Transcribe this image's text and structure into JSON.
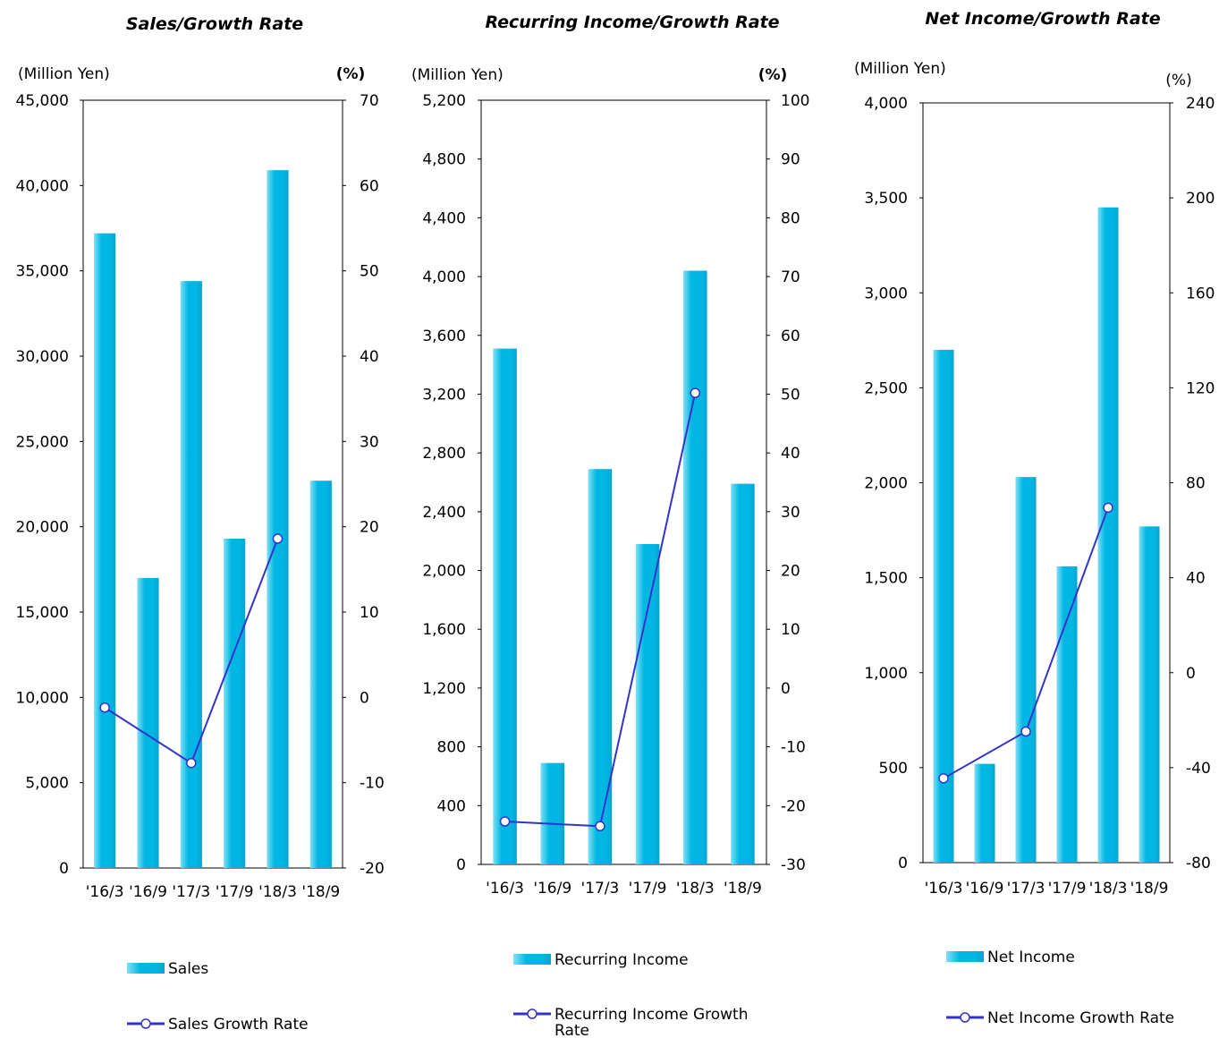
{
  "colors": {
    "bar": "#00b7e3",
    "bar_edge": "#7fe0f5",
    "line": "#3333cc",
    "marker_fill": "#ffffff"
  },
  "chart_data": [
    {
      "type": "bar",
      "title": "Sales/Growth Rate",
      "ylabel": "(Million Yen)",
      "y2label": "(%)",
      "categories": [
        "'16/3",
        "'16/9",
        "'17/3",
        "'17/9",
        "'18/3",
        "'18/9"
      ],
      "ylim": [
        0,
        45000
      ],
      "yticks": [
        "45,000",
        "40,000",
        "35,000",
        "30,000",
        "25,000",
        "20,000",
        "15,000",
        "10,000",
        "5,000",
        "0"
      ],
      "y2lim": [
        -20,
        70
      ],
      "y2ticks": [
        "70",
        "60",
        "50",
        "40",
        "30",
        "20",
        "10",
        "0",
        "-10",
        "-20"
      ],
      "series": [
        {
          "name": "Sales",
          "type": "bar",
          "axis": "left",
          "values": [
            37200,
            17000,
            34400,
            19300,
            40900,
            22700
          ]
        },
        {
          "name": "Sales Growth Rate",
          "type": "line",
          "axis": "right",
          "values": [
            -1.2,
            null,
            -7.7,
            null,
            18.6,
            null
          ]
        }
      ],
      "legend": [
        "Sales",
        "Sales Growth Rate"
      ]
    },
    {
      "type": "bar",
      "title": "Recurring Income/Growth Rate",
      "ylabel": "(Million Yen)",
      "y2label": "(%)",
      "categories": [
        "'16/3",
        "'16/9",
        "'17/3",
        "'17/9",
        "'18/3",
        "'18/9"
      ],
      "ylim": [
        0,
        5200
      ],
      "yticks": [
        "5,200",
        "4,800",
        "4,400",
        "4,000",
        "3,600",
        "3,200",
        "2,800",
        "2,400",
        "2,000",
        "1,600",
        "1,200",
        "800",
        "400",
        "0"
      ],
      "y2lim": [
        -30,
        100
      ],
      "y2ticks": [
        "100",
        "90",
        "80",
        "70",
        "60",
        "50",
        "40",
        "30",
        "20",
        "10",
        "0",
        "-10",
        "-20",
        "-30"
      ],
      "series": [
        {
          "name": "Recurring Income",
          "type": "bar",
          "axis": "left",
          "values": [
            3510,
            690,
            2690,
            2180,
            4040,
            2590
          ]
        },
        {
          "name": "Recurring Income Growth Rate",
          "type": "line",
          "axis": "right",
          "values": [
            -22.7,
            null,
            -23.5,
            null,
            50.2,
            null
          ]
        }
      ],
      "legend": [
        "Recurring Income",
        "Recurring Income Growth Rate"
      ]
    },
    {
      "type": "bar",
      "title": "Net Income/Growth Rate",
      "ylabel": "(Million Yen)",
      "y2label": "(%)",
      "categories": [
        "'16/3",
        "'16/9",
        "'17/3",
        "'17/9",
        "'18/3",
        "'18/9"
      ],
      "ylim": [
        0,
        4000
      ],
      "yticks": [
        "4,000",
        "3,500",
        "3,000",
        "2,500",
        "2,000",
        "1,500",
        "1,000",
        "500",
        "0"
      ],
      "y2lim": [
        -80,
        240
      ],
      "y2ticks": [
        "240",
        "200",
        "160",
        "120",
        "80",
        "40",
        "0",
        "-40",
        "-80"
      ],
      "series": [
        {
          "name": "Net Income",
          "type": "bar",
          "axis": "left",
          "values": [
            2700,
            520,
            2030,
            1560,
            3450,
            1770
          ]
        },
        {
          "name": "Net Income Growth Rate",
          "type": "line",
          "axis": "right",
          "values": [
            -44.5,
            null,
            -24.8,
            null,
            69.5,
            null
          ]
        }
      ],
      "legend": [
        "Net Income",
        "Net Income Growth Rate"
      ]
    }
  ]
}
